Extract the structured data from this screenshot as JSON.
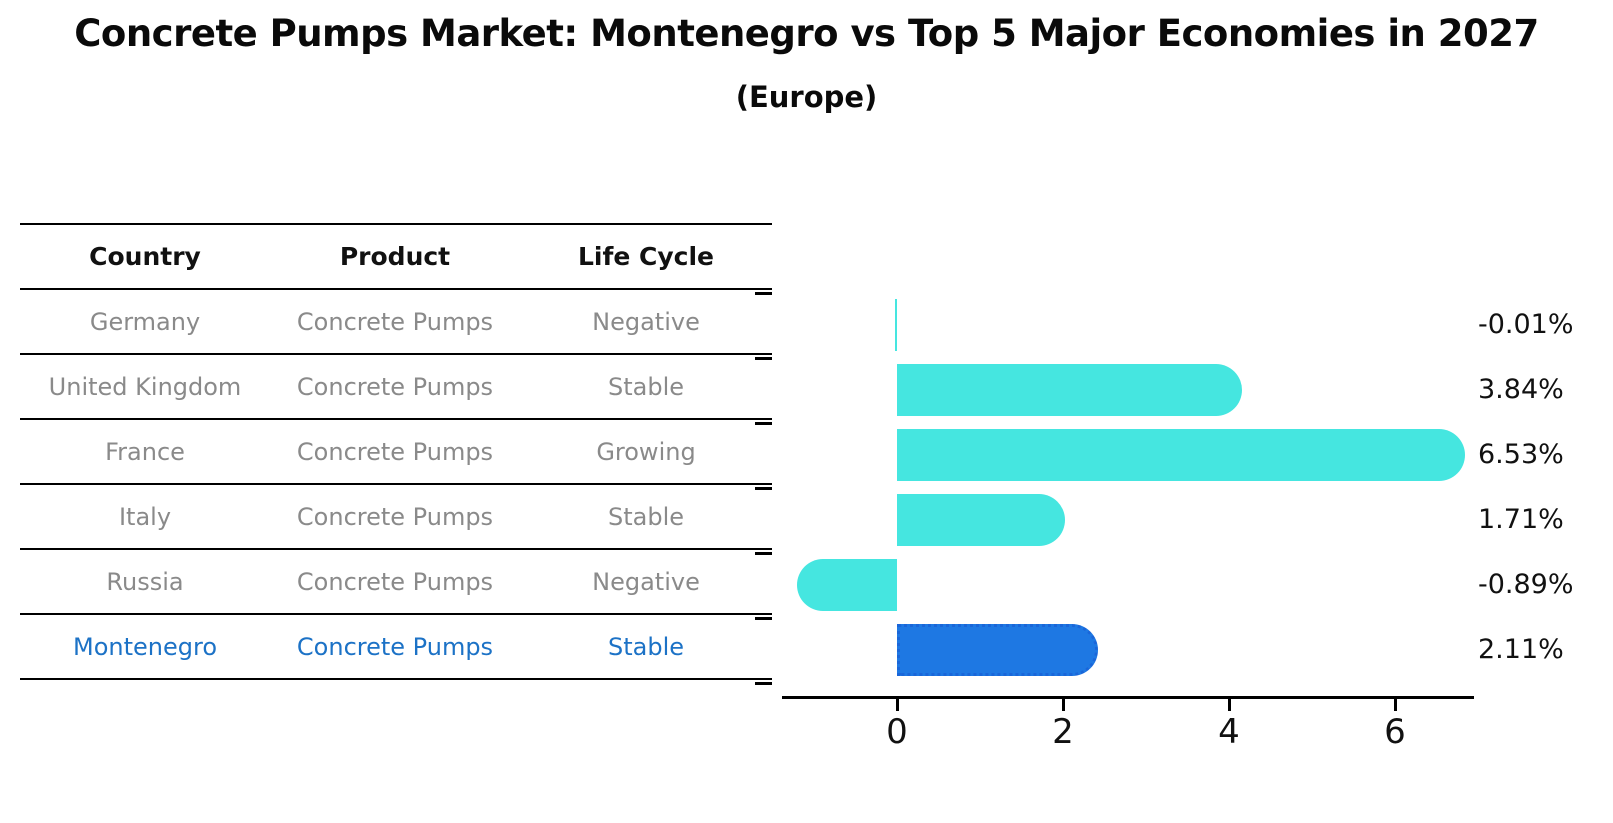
{
  "title": "Concrete Pumps Market: Montenegro vs Top 5 Major Economies in 2027",
  "subtitle": "(Europe)",
  "table": {
    "headers": [
      "Country",
      "Product",
      "Life Cycle"
    ],
    "rows": [
      {
        "country": "Germany",
        "product": "Concrete Pumps",
        "life_cycle": "Negative",
        "highlighted": false
      },
      {
        "country": "United Kingdom",
        "product": "Concrete Pumps",
        "life_cycle": "Stable",
        "highlighted": false
      },
      {
        "country": "France",
        "product": "Concrete Pumps",
        "life_cycle": "Growing",
        "highlighted": false
      },
      {
        "country": "Italy",
        "product": "Concrete Pumps",
        "life_cycle": "Stable",
        "highlighted": false
      },
      {
        "country": "Russia",
        "product": "Concrete Pumps",
        "life_cycle": "Negative",
        "highlighted": false
      },
      {
        "country": "Montenegro",
        "product": "Concrete Pumps",
        "life_cycle": "Stable",
        "highlighted": true
      }
    ]
  },
  "chart_data": {
    "type": "bar",
    "orientation": "horizontal",
    "title": "Concrete Pumps Market: Montenegro vs Top 5 Major Economies in 2027 (Europe)",
    "categories": [
      "Germany",
      "United Kingdom",
      "France",
      "Italy",
      "Russia",
      "Montenegro"
    ],
    "values": [
      -0.01,
      3.84,
      6.53,
      1.71,
      -0.89,
      2.11
    ],
    "value_labels": [
      "-0.01%",
      "3.84%",
      "6.53%",
      "1.71%",
      "-0.89%",
      "2.11%"
    ],
    "unit": "%",
    "x_ticks": [
      0,
      2,
      4,
      6
    ],
    "xlim": [
      -1.4,
      6.95
    ],
    "grid": false,
    "legend": false,
    "bar_color": "#45e6e0",
    "highlight_index": 5,
    "highlight_color": "#1e78e3",
    "highlight_border_color": "#1a66d9"
  },
  "colors": {
    "highlight_text": "#1c72c6",
    "table_text": "#8a8a8a",
    "line_color": "#000000"
  }
}
